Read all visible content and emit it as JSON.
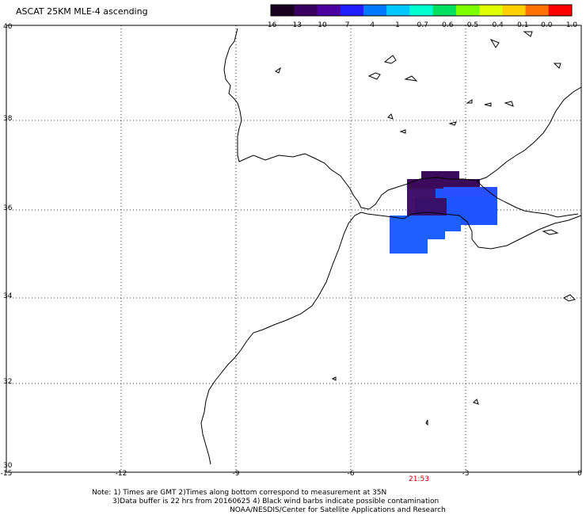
{
  "header": {
    "title": "ASCAT 25KM MLE-4 ascending"
  },
  "colorbar": {
    "labels": [
      "-16",
      "-13",
      "-10",
      "-7",
      "-4",
      "-1",
      "-0.7",
      "-0.6",
      "-0.5",
      "-0.4",
      "-0.1",
      "0.0",
      "1.0"
    ],
    "colors": [
      "#1a0020",
      "#3a0060",
      "#4b00a0",
      "#2020ff",
      "#0078ff",
      "#00c8ff",
      "#00ffd0",
      "#00e060",
      "#7fff00",
      "#e0ff00",
      "#ffd000",
      "#ff7000",
      "#ff0000"
    ]
  },
  "axes": {
    "lat_labels": [
      "40",
      "38",
      "36",
      "34",
      "32",
      "30"
    ],
    "lon_labels": [
      "-15",
      "-12",
      "-9",
      "-6",
      "-3",
      "0"
    ]
  },
  "time_label": "21:53",
  "notes": {
    "line1": "Note: 1) Times are GMT 2)Times along bottom correspond to measurement at 35N",
    "line2": "3)Data buffer is 22 hrs from 20160625 4) Black wind barbs indicate possible contamination",
    "line3": "NOAA/NESDIS/Center for Satellite Applications and Research"
  },
  "data_blocks": [
    {
      "value": -16,
      "color": "#3c0a5a"
    },
    {
      "value": -10,
      "color": "#2850ff"
    },
    {
      "value": -7,
      "color": "#1a5cff"
    }
  ]
}
